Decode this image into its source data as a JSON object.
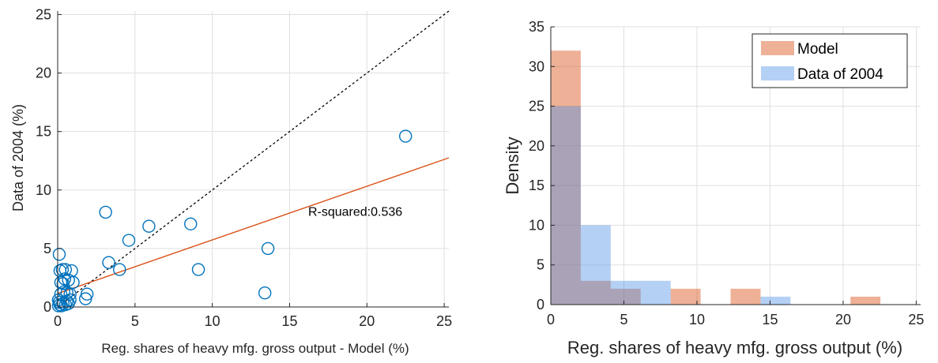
{
  "chart_data": [
    {
      "type": "scatter",
      "xlabel": "Reg. shares of heavy mfg. gross output - Model (%)",
      "ylabel": "Data of 2004 (%)",
      "xlim": [
        0,
        25.3
      ],
      "ylim": [
        0,
        25.3
      ],
      "xticks": [
        "0",
        "5",
        "10",
        "15",
        "20",
        "25"
      ],
      "yticks": [
        "0",
        "5",
        "10",
        "15",
        "20",
        "25"
      ],
      "grid": true,
      "marker_color": "#0072BD",
      "points": [
        [
          0.1,
          4.5
        ],
        [
          0.15,
          3.1
        ],
        [
          0.3,
          3.2
        ],
        [
          0.5,
          3.2
        ],
        [
          0.9,
          3.1
        ],
        [
          0.2,
          2.1
        ],
        [
          0.35,
          2.0
        ],
        [
          0.45,
          2.4
        ],
        [
          0.7,
          2.3
        ],
        [
          1.0,
          2.1
        ],
        [
          0.2,
          1.1
        ],
        [
          0.4,
          1.3
        ],
        [
          0.6,
          1.2
        ],
        [
          0.8,
          1.1
        ],
        [
          0.05,
          0.6
        ],
        [
          0.1,
          0.4
        ],
        [
          0.15,
          0.2
        ],
        [
          0.25,
          0.1
        ],
        [
          0.35,
          0.3
        ],
        [
          0.5,
          0.2
        ],
        [
          0.6,
          0.5
        ],
        [
          0.7,
          0.3
        ],
        [
          0.8,
          0.6
        ],
        [
          0.05,
          0.1
        ],
        [
          1.8,
          0.7
        ],
        [
          1.9,
          1.1
        ],
        [
          3.1,
          8.1
        ],
        [
          3.3,
          3.8
        ],
        [
          4.0,
          3.2
        ],
        [
          4.6,
          5.7
        ],
        [
          5.9,
          6.9
        ],
        [
          8.6,
          7.1
        ],
        [
          9.1,
          3.2
        ],
        [
          13.4,
          1.2
        ],
        [
          13.6,
          5.0
        ],
        [
          22.5,
          14.6
        ]
      ],
      "fit_line": {
        "x": [
          0,
          25.3
        ],
        "y": [
          1.15,
          12.75
        ],
        "color": "#D95319"
      },
      "identity_line": {
        "x": [
          0,
          25.3
        ],
        "y": [
          0,
          25.3
        ],
        "style": "dotted",
        "color": "#000000"
      },
      "annotations": [
        {
          "text": "R-squared:0.536",
          "x": 16.2,
          "y": 7.8
        }
      ]
    },
    {
      "type": "histogram",
      "xlabel": "Reg. shares of heavy mfg. gross output (%)",
      "ylabel": "Density",
      "xlim": [
        0,
        25.3
      ],
      "ylim": [
        0,
        35
      ],
      "xticks": [
        "0",
        "5",
        "10",
        "15",
        "20",
        "25"
      ],
      "yticks": [
        "0",
        "5",
        "10",
        "15",
        "20",
        "25",
        "30",
        "35"
      ],
      "grid": true,
      "legend_position": "top-right",
      "series": [
        {
          "name": "Model",
          "color": "#D95319",
          "bin_edges": [
            0,
            2.05,
            4.1,
            6.15,
            8.2,
            10.25,
            12.3,
            14.35,
            16.4,
            18.45,
            20.5,
            22.55
          ],
          "counts": [
            32,
            3,
            2,
            0,
            2,
            0,
            2,
            0,
            0,
            0,
            1
          ]
        },
        {
          "name": "Data of 2004",
          "color": "#4D8FE6",
          "bin_edges": [
            0,
            2.05,
            4.1,
            6.15,
            8.2,
            10.25,
            12.3,
            14.35,
            16.4
          ],
          "counts": [
            25,
            10,
            3,
            3,
            0,
            0,
            0,
            1
          ]
        }
      ]
    }
  ]
}
